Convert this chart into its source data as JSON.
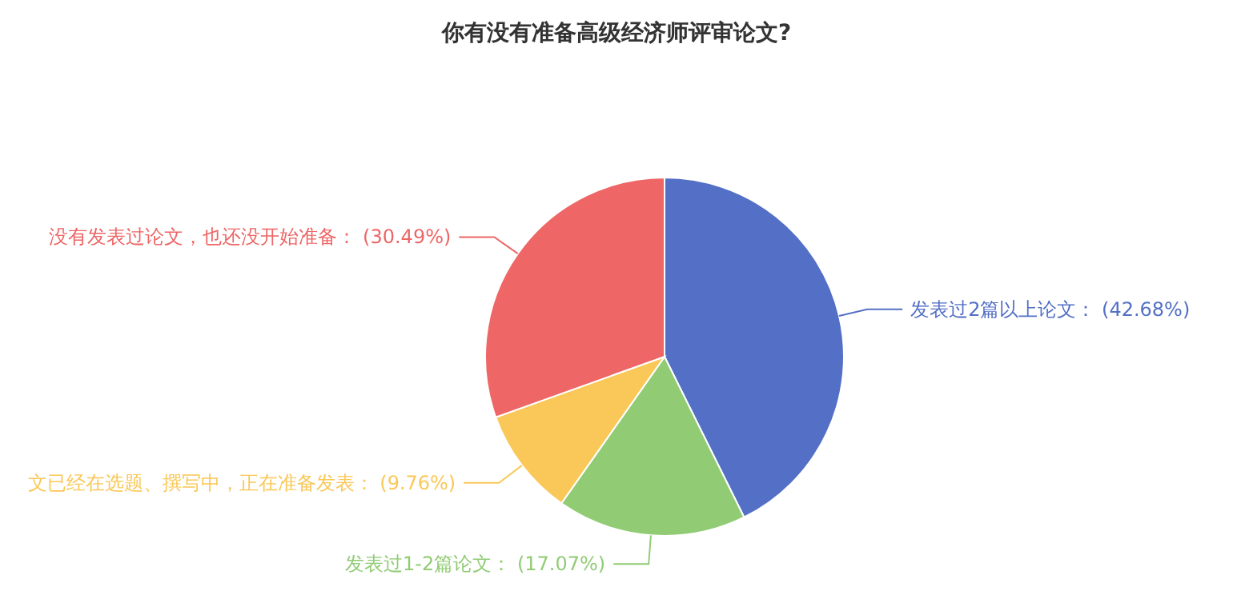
{
  "chart_data": {
    "type": "pie",
    "title": "你有没有准备高级经济师评审论文?",
    "categories": [
      "发表过2篇以上论文",
      "发表过1-2篇论文",
      "文已经在选题、撰写中，正在准备发表",
      "没有发表过论文，也还没开始准备"
    ],
    "values": [
      42.68,
      17.07,
      9.76,
      30.49
    ],
    "value_labels": [
      "(42.68%)",
      "(17.07%)",
      "(9.76%)",
      "(30.49%)"
    ],
    "colors": [
      "#5470c6",
      "#91cc75",
      "#fac858",
      "#ee6666"
    ],
    "legend": false
  }
}
